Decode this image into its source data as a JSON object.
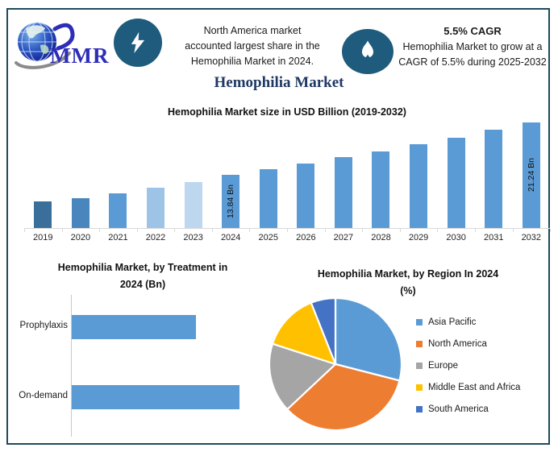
{
  "title": "Hemophilia Market",
  "header": {
    "logo_text": "MMR",
    "north_america_note": {
      "line1": "North America market",
      "line2": "accounted largest share in the",
      "line3": "Hemophilia Market in 2024."
    },
    "cagr_note": {
      "title": "5.5% CAGR",
      "line1": "Hemophilia Market to grow at a",
      "line2": "CAGR of 5.5% during 2025-2032"
    }
  },
  "colors": {
    "frame_border": "#1e4a5c",
    "badge_circle": "#1f5b7d",
    "heading_text": "#1f3864",
    "logo_text": "#2d2db8",
    "axis_line": "#d9d9d9",
    "primary_bar": "#5b9bd5"
  },
  "chart_data": [
    {
      "id": "market-size",
      "type": "bar",
      "title": "Hemophilia Market size in USD Billion (2019-2032)",
      "ylabel": "USD Billion",
      "categories": [
        "2019",
        "2020",
        "2021",
        "2022",
        "2023",
        "2024",
        "2025",
        "2026",
        "2027",
        "2028",
        "2029",
        "2030",
        "2031",
        "2032"
      ],
      "values": [
        10.0,
        10.55,
        11.2,
        12.0,
        12.8,
        13.84,
        14.6,
        15.4,
        16.25,
        17.14,
        18.09,
        19.08,
        20.13,
        21.24
      ],
      "data_labels": [
        "",
        "",
        "",
        "",
        "",
        "13.84 Bn",
        "",
        "",
        "",
        "",
        "",
        "",
        "",
        "21.24 Bn"
      ],
      "bar_colors": [
        "#3a6e9b",
        "#4a86be",
        "#5b9bd5",
        "#9dc3e6",
        "#bdd7ee",
        "#5b9bd5",
        "#5b9bd5",
        "#5b9bd5",
        "#5b9bd5",
        "#5b9bd5",
        "#5b9bd5",
        "#5b9bd5",
        "#5b9bd5",
        "#5b9bd5"
      ],
      "value_axis_min": 6.3,
      "grid": false,
      "legend": false
    },
    {
      "id": "treatment",
      "type": "bar",
      "orientation": "horizontal",
      "title_line1": "Hemophilia Market, by Treatment in",
      "title_line2": "2024 (Bn)",
      "categories": [
        "Prophylaxis",
        "On-demand"
      ],
      "values": [
        74,
        100
      ],
      "unit": "relative length (no data labels shown)",
      "bar_color": "#5b9bd5",
      "grid": false,
      "legend": false
    },
    {
      "id": "region",
      "type": "pie",
      "title_line1": "Hemophilia Market, by Region In 2024",
      "title_line2": "(%)",
      "start_angle_deg": 0,
      "direction": "clockwise",
      "legend_position": "right",
      "slices": [
        {
          "label": "Asia Pacific",
          "value": 29,
          "color": "#5b9bd5"
        },
        {
          "label": "North America",
          "value": 34,
          "color": "#ed7d31"
        },
        {
          "label": "Europe",
          "value": 17,
          "color": "#a5a5a5"
        },
        {
          "label": "Middle East and Africa",
          "value": 14,
          "color": "#ffc000"
        },
        {
          "label": "South America",
          "value": 6,
          "color": "#4472c4"
        }
      ]
    }
  ]
}
